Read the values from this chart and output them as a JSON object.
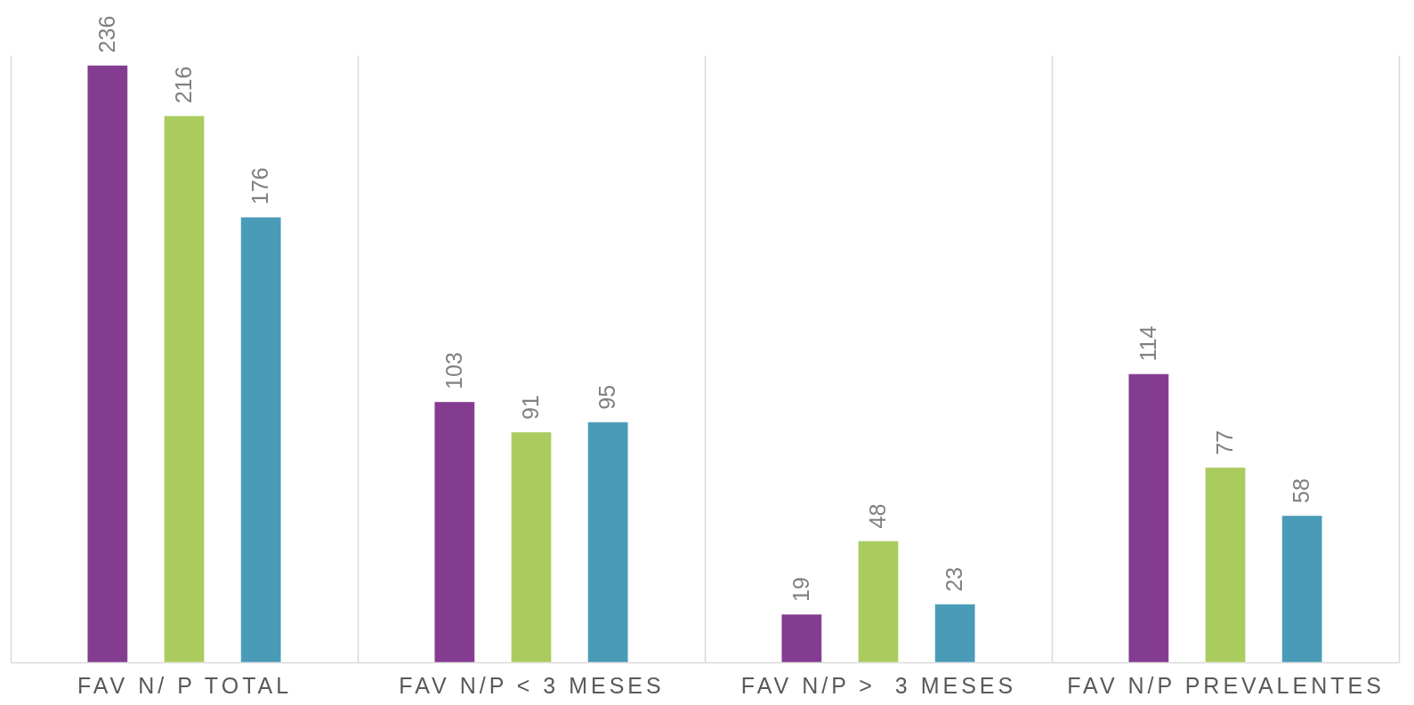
{
  "chart_data": {
    "type": "bar",
    "categories": [
      "FAV N/ P TOTAL",
      "FAV N/P < 3 MESES",
      "FAV N/P >  3 MESES",
      "FAV N/P PREVALENTES"
    ],
    "series": [
      {
        "color": "#843c91",
        "values": [
          236,
          103,
          19,
          114
        ]
      },
      {
        "color": "#aacb5e",
        "values": [
          216,
          91,
          48,
          77
        ]
      },
      {
        "color": "#4a9bb7",
        "values": [
          176,
          95,
          23,
          58
        ]
      }
    ],
    "data_labels": true,
    "grid": "x",
    "legend": false,
    "tick_labels": "x"
  }
}
